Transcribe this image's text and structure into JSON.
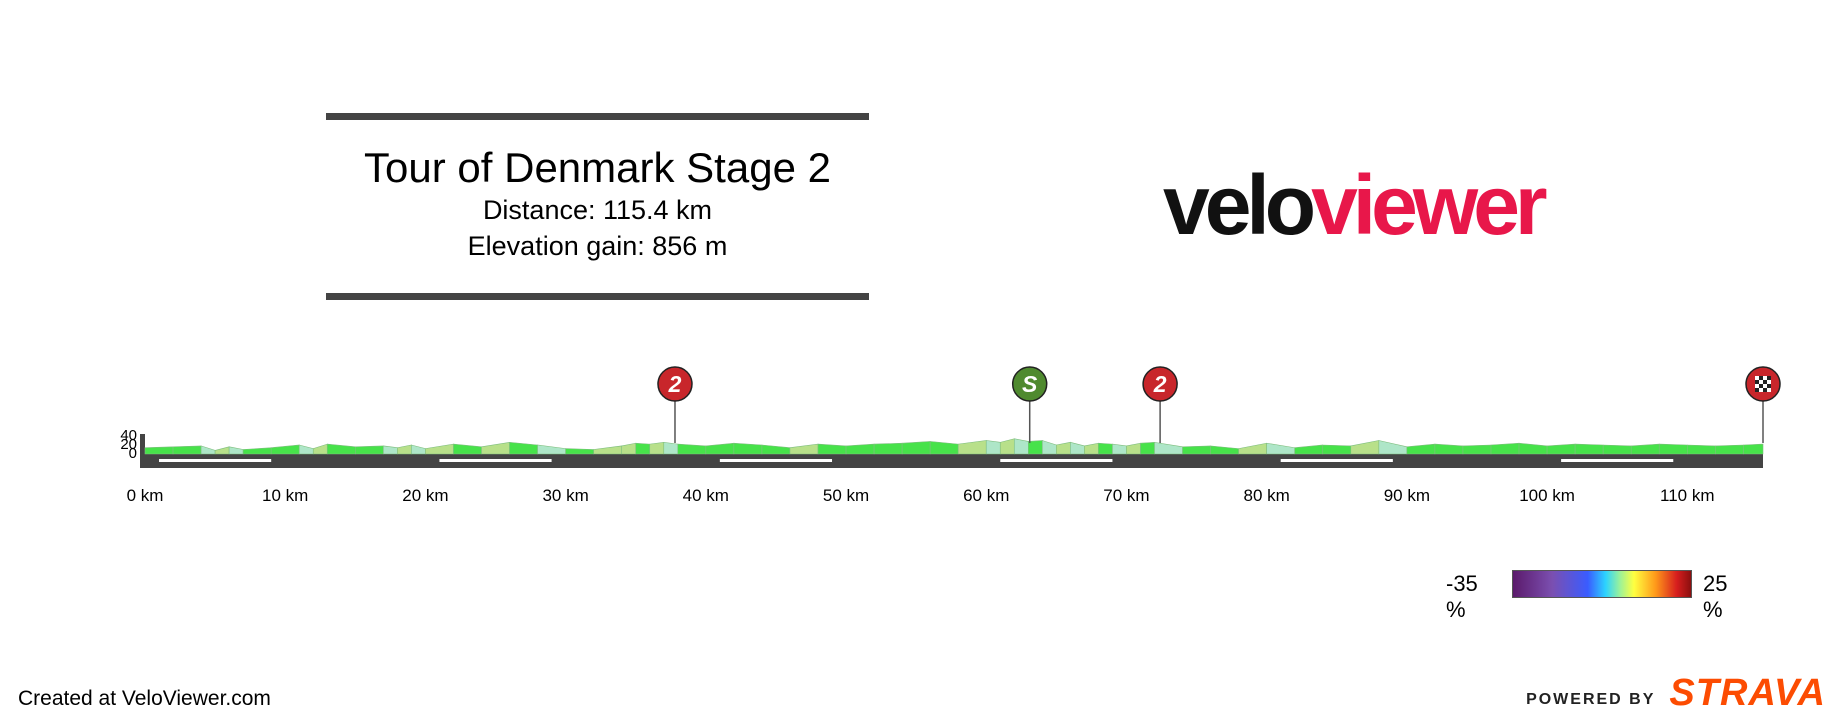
{
  "header": {
    "title": "Tour of Denmark Stage 2",
    "distance": "Distance: 115.4 km",
    "elevation_gain": "Elevation gain: 856 m"
  },
  "logo": {
    "part1": "velo",
    "part2": "viewer"
  },
  "footer": {
    "credit": "Created at VeloViewer.com",
    "powered_by": "POWERED BY",
    "strava": "STRAVA"
  },
  "legend": {
    "min_label": "-35 %",
    "max_label": "25 %"
  },
  "colors": {
    "accent": "#e8174a",
    "strava": "#fc4c02",
    "road": "#444444",
    "profile": "#47e24a",
    "kom": "#c8262b",
    "sprint": "#4f8a2f"
  },
  "chart_data": {
    "type": "area",
    "title": "Tour of Denmark Stage 2",
    "xlabel": "",
    "ylabel": "",
    "xlim": [
      0,
      115.4
    ],
    "ylim": [
      0,
      40
    ],
    "x_ticks": [
      "0 km",
      "10 km",
      "20 km",
      "30 km",
      "40 km",
      "50 km",
      "60 km",
      "70 km",
      "80 km",
      "90 km",
      "100 km",
      "110 km"
    ],
    "y_ticks": [
      "40",
      "20",
      "0"
    ],
    "x": [
      0,
      2,
      4,
      5,
      6,
      7,
      9,
      11,
      12,
      13,
      15,
      17,
      18,
      19,
      20,
      22,
      24,
      26,
      28,
      30,
      32,
      34,
      35,
      36,
      37,
      38,
      40,
      42,
      44,
      46,
      48,
      50,
      52,
      54,
      56,
      58,
      60,
      61,
      62,
      63,
      64,
      65,
      66,
      67,
      68,
      69,
      70,
      71,
      72,
      74,
      76,
      78,
      80,
      82,
      84,
      86,
      88,
      90,
      92,
      94,
      96,
      98,
      100,
      102,
      104,
      106,
      108,
      110,
      112,
      114,
      115.4
    ],
    "elevation": [
      14,
      16,
      18,
      8,
      16,
      10,
      14,
      20,
      12,
      22,
      16,
      18,
      14,
      20,
      12,
      22,
      16,
      26,
      20,
      12,
      10,
      18,
      24,
      22,
      26,
      22,
      18,
      24,
      20,
      14,
      22,
      18,
      22,
      24,
      28,
      22,
      30,
      26,
      34,
      28,
      30,
      20,
      26,
      18,
      24,
      22,
      18,
      24,
      26,
      16,
      18,
      12,
      24,
      14,
      20,
      18,
      30,
      16,
      22,
      18,
      20,
      24,
      18,
      22,
      20,
      18,
      22,
      20,
      18,
      20,
      22
    ],
    "markers": [
      {
        "km": 37.8,
        "label": "2",
        "type": "kom"
      },
      {
        "km": 63.1,
        "label": "S",
        "type": "sprint"
      },
      {
        "km": 72.4,
        "label": "2",
        "type": "kom"
      },
      {
        "km": 115.4,
        "label": "",
        "type": "finish"
      }
    ],
    "gradient_legend": {
      "min": -35,
      "max": 25
    }
  }
}
